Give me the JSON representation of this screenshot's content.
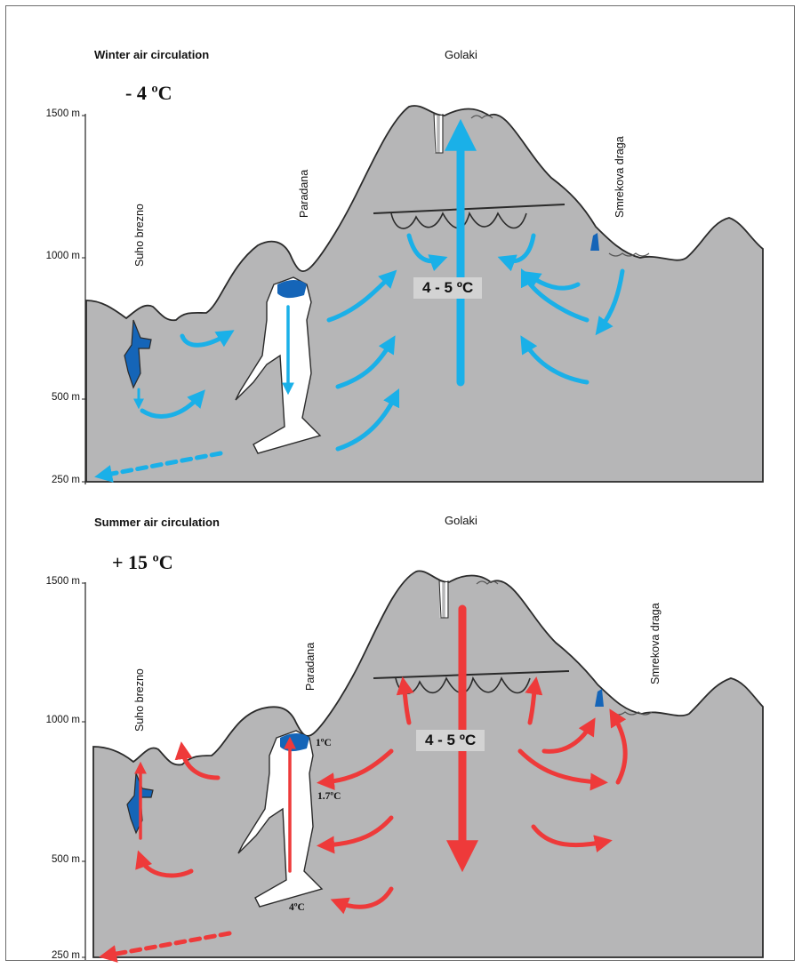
{
  "panels": [
    {
      "heading": "Winter air circulation",
      "outside_temp": "- 4 ºC",
      "peak": "Golaki",
      "elevations": [
        "1500 m",
        "1000 m",
        "500 m",
        "250 m"
      ],
      "caves": [
        "Suho brezno",
        "Paradana",
        "Smrekova draga"
      ],
      "cave_temp": "4 - 5 ºC",
      "arrow_color": "#1ab0e8",
      "inner_temps": []
    },
    {
      "heading": "Summer air circulation",
      "outside_temp": "+ 15 ºC",
      "peak": "Golaki",
      "elevations": [
        "1500 m",
        "1000 m",
        "500 m",
        "250 m"
      ],
      "caves": [
        "Suho brezno",
        "Paradana",
        "Smrekova draga"
      ],
      "cave_temp": "4 - 5 ºC",
      "arrow_color": "#ee3a3a",
      "inner_temps": [
        "1ºC",
        "1.7ºC",
        "4ºC"
      ]
    }
  ],
  "colors": {
    "terrain": "#b6b6b7",
    "outline": "#2a2a2a",
    "water": "#1565b8"
  }
}
